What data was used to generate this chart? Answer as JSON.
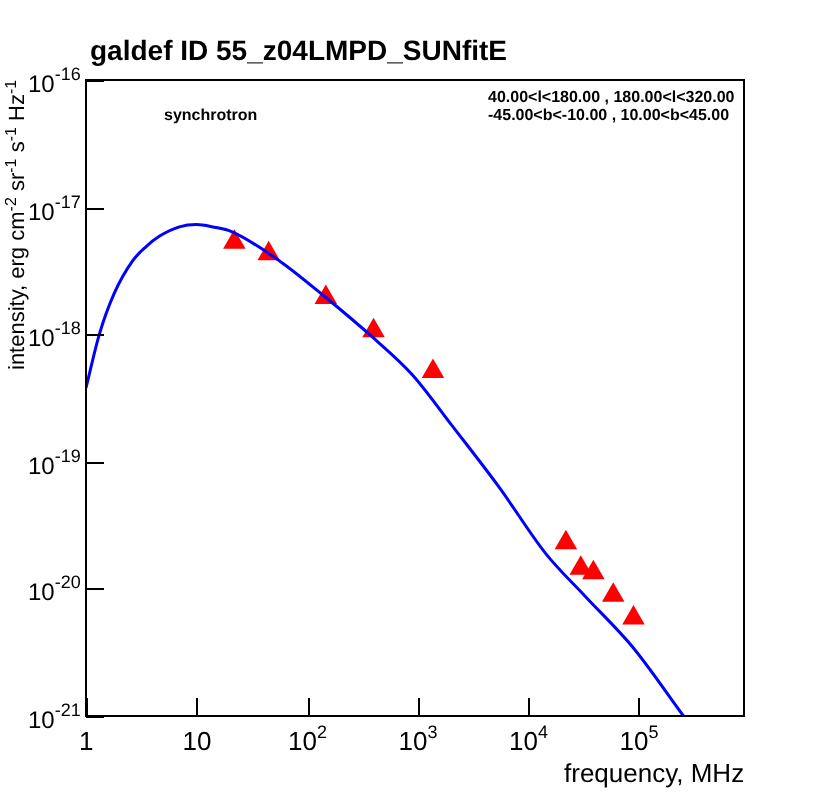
{
  "chart_data": {
    "type": "scatter",
    "title": "galdef ID 55_z04LMPD_SUNfitE",
    "xlabel": "frequency, MHz",
    "ylabel": "intensity, erg cm$^{-2}$ sr$^{-1}$ s$^{-1}$ Hz$^{-1}$",
    "log": "xy",
    "grid": false,
    "legend": false,
    "xlim": [
      1,
      900000
    ],
    "ylim": [
      1e-21,
      1e-16
    ],
    "xticks": [
      1,
      10,
      {
        "value": 100,
        "label": "10$^{2}$"
      },
      {
        "value": 1000,
        "label": "10$^{3}$"
      },
      {
        "value": 10000,
        "label": "10$^{4}$"
      },
      {
        "value": 100000,
        "label": "10$^{5}$"
      }
    ],
    "yticks": [
      {
        "value": 1e-21,
        "label": "10$^{-21}$"
      },
      {
        "value": 1e-20,
        "label": "10$^{-20}$"
      },
      {
        "value": 1e-19,
        "label": "10$^{-19}$"
      },
      {
        "value": 1e-18,
        "label": "10$^{-18}$"
      },
      {
        "value": 1e-17,
        "label": "10$^{-17}$"
      },
      {
        "value": 1e-16,
        "label": "10$^{-16}$"
      }
    ],
    "annotations": [
      "synchrotron",
      "40.00<l<180.00 , 180.00<l<320.00",
      "-45.00<b<-10.00 , 10.00<b<45.00"
    ],
    "series": [
      {
        "type": "line",
        "color": "#0000ff",
        "marker": "none",
        "line_style": "solid",
        "x": [
          1,
          1.32,
          1.8,
          2.65,
          3.5,
          4.6,
          7,
          10,
          14,
          21,
          56,
          148,
          392,
          900,
          2070,
          5470,
          14400,
          33000,
          88000,
          255000
        ],
        "values": [
          3.8e-19,
          1e-18,
          2.1e-18,
          3.8e-18,
          4.9e-18,
          5.9e-18,
          7e-18,
          7.3e-18,
          7e-18,
          6.4e-18,
          3.8e-18,
          1.95e-18,
          9.5e-19,
          4.8e-19,
          1.9e-19,
          6.3e-20,
          1.9e-20,
          8.7e-21,
          3.5e-21,
          1e-21
        ]
      },
      {
        "type": "scatter",
        "color": "#ff0000",
        "marker": "triangle",
        "x": [
          22,
          45,
          148,
          400,
          1380,
          22000,
          30000,
          39000,
          59000,
          90000
        ],
        "values": [
          5.3e-18,
          4.3e-18,
          1.95e-18,
          1.07e-18,
          5.1e-19,
          2.3e-20,
          1.45e-20,
          1.34e-20,
          8.9e-21,
          5.9e-21
        ]
      }
    ]
  }
}
